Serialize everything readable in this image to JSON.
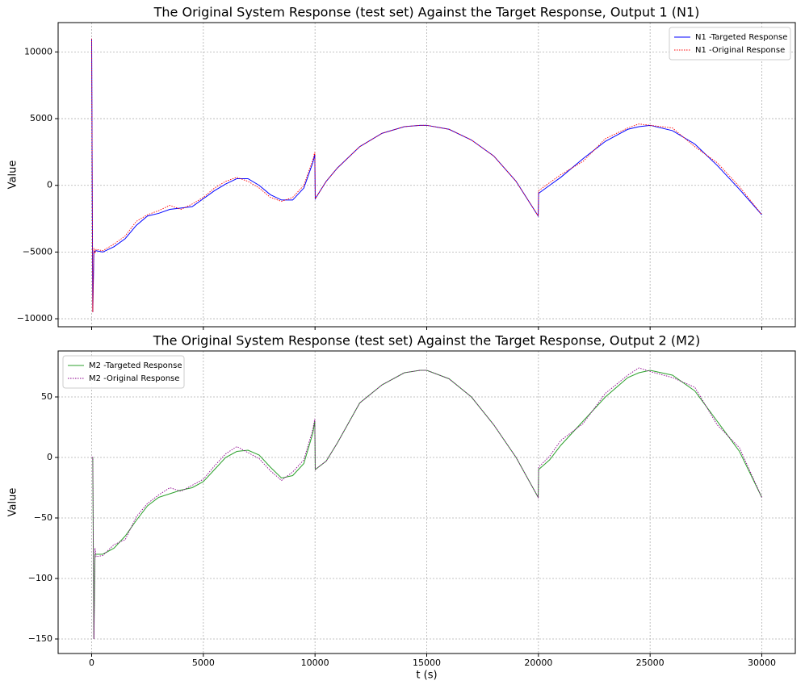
{
  "chart_data": [
    {
      "type": "line",
      "title": "The Original System Response (test set) Against the Target Response, Output 1 (N1)",
      "ylabel": "Value",
      "legend": "upper right",
      "grid": true,
      "xlim": [
        -1500,
        31500
      ],
      "ylim": [
        -10600,
        12200
      ],
      "yticks": [
        {
          "value": -10000,
          "label": "−10000"
        },
        {
          "value": -5000,
          "label": "−5000"
        },
        0,
        5000,
        10000
      ],
      "x": [
        0,
        50,
        100,
        150,
        200,
        500,
        1000,
        1500,
        2000,
        2500,
        3000,
        3500,
        4000,
        4500,
        5000,
        5500,
        6000,
        6500,
        7000,
        7500,
        8000,
        8500,
        9000,
        9500,
        9900,
        9990,
        10010,
        10500,
        11000,
        12000,
        13000,
        14000,
        14700,
        15000,
        16000,
        17000,
        18000,
        19000,
        19990,
        20010,
        20500,
        21000,
        22000,
        23000,
        24000,
        24500,
        25000,
        26000,
        27000,
        28000,
        29000,
        30000
      ],
      "series": [
        {
          "name": "N1 -Targeted Response",
          "color": "#0000ff",
          "style": "solid",
          "values": [
            11000,
            -9500,
            -5000,
            -4950,
            -4900,
            -5000,
            -4600,
            -4000,
            -3000,
            -2300,
            -2100,
            -1800,
            -1700,
            -1600,
            -1000,
            -400,
            100,
            500,
            500,
            0,
            -700,
            -1100,
            -1100,
            -200,
            1700,
            2300,
            -1000,
            300,
            1300,
            2900,
            3900,
            4400,
            4500,
            4500,
            4200,
            3400,
            2200,
            300,
            -2300,
            -600,
            0,
            600,
            2000,
            3300,
            4200,
            4400,
            4500,
            4100,
            3100,
            1500,
            -300,
            -2200
          ]
        },
        {
          "name": "N1 -Original Response",
          "color": "#ff0000",
          "style": "dotted",
          "values": [
            11000,
            -9500,
            -4700,
            -5100,
            -4800,
            -4900,
            -4400,
            -3800,
            -2700,
            -2200,
            -1900,
            -1500,
            -1800,
            -1400,
            -900,
            -200,
            300,
            600,
            300,
            -200,
            -900,
            -1200,
            -900,
            0,
            1900,
            2500,
            -1000,
            300,
            1300,
            2900,
            3900,
            4400,
            4500,
            4500,
            4200,
            3400,
            2200,
            300,
            -2300,
            -400,
            200,
            800,
            1800,
            3500,
            4300,
            4600,
            4500,
            4300,
            2900,
            1700,
            -100,
            -2200
          ]
        }
      ]
    },
    {
      "type": "line",
      "title": "The Original System Response (test set) Against the Target Response, Output 2 (M2)",
      "ylabel": "Value",
      "xlabel": "t (s)",
      "legend": "upper left",
      "grid": true,
      "xlim": [
        -1500,
        31500
      ],
      "ylim": [
        -162,
        88
      ],
      "xticks": [
        0,
        5000,
        10000,
        15000,
        20000,
        25000,
        30000
      ],
      "yticks": [
        {
          "value": -150,
          "label": "−150"
        },
        {
          "value": -100,
          "label": "−100"
        },
        {
          "value": -50,
          "label": "−50"
        },
        0,
        50
      ],
      "x": [
        0,
        50,
        100,
        150,
        200,
        500,
        1000,
        1500,
        2000,
        2500,
        3000,
        3500,
        4000,
        4500,
        5000,
        5500,
        6000,
        6500,
        7000,
        7500,
        8000,
        8500,
        9000,
        9500,
        9900,
        9990,
        10010,
        10500,
        11000,
        12000,
        13000,
        14000,
        14700,
        15000,
        16000,
        17000,
        18000,
        19000,
        19990,
        20010,
        20500,
        21000,
        22000,
        23000,
        24000,
        24500,
        25000,
        26000,
        27000,
        28000,
        29000,
        30000
      ],
      "series": [
        {
          "name": "M2 -Targeted Response",
          "color": "#2ca02c",
          "style": "solid",
          "values": [
            0,
            0,
            -150,
            -80,
            -80,
            -80,
            -75,
            -65,
            -52,
            -40,
            -33,
            -30,
            -27,
            -25,
            -20,
            -10,
            0,
            5,
            6,
            2,
            -8,
            -17,
            -15,
            -5,
            20,
            30,
            -10,
            -3,
            12,
            45,
            60,
            70,
            72,
            72,
            65,
            50,
            27,
            0,
            -33,
            -10,
            -2,
            10,
            30,
            50,
            66,
            70,
            72,
            68,
            55,
            30,
            5,
            -33
          ]
        },
        {
          "name": "M2 -Original Response",
          "color": "#8b008b",
          "style": "dotted",
          "values": [
            0,
            0,
            -150,
            -75,
            -82,
            -81,
            -72,
            -68,
            -49,
            -38,
            -31,
            -25,
            -28,
            -23,
            -18,
            -7,
            3,
            9,
            4,
            -1,
            -11,
            -19,
            -12,
            -2,
            23,
            32,
            -10,
            -3,
            12,
            45,
            60,
            70,
            72,
            72,
            65,
            50,
            27,
            0,
            -33,
            -8,
            1,
            14,
            28,
            53,
            68,
            74,
            71,
            66,
            58,
            27,
            8,
            -33
          ]
        }
      ]
    }
  ]
}
